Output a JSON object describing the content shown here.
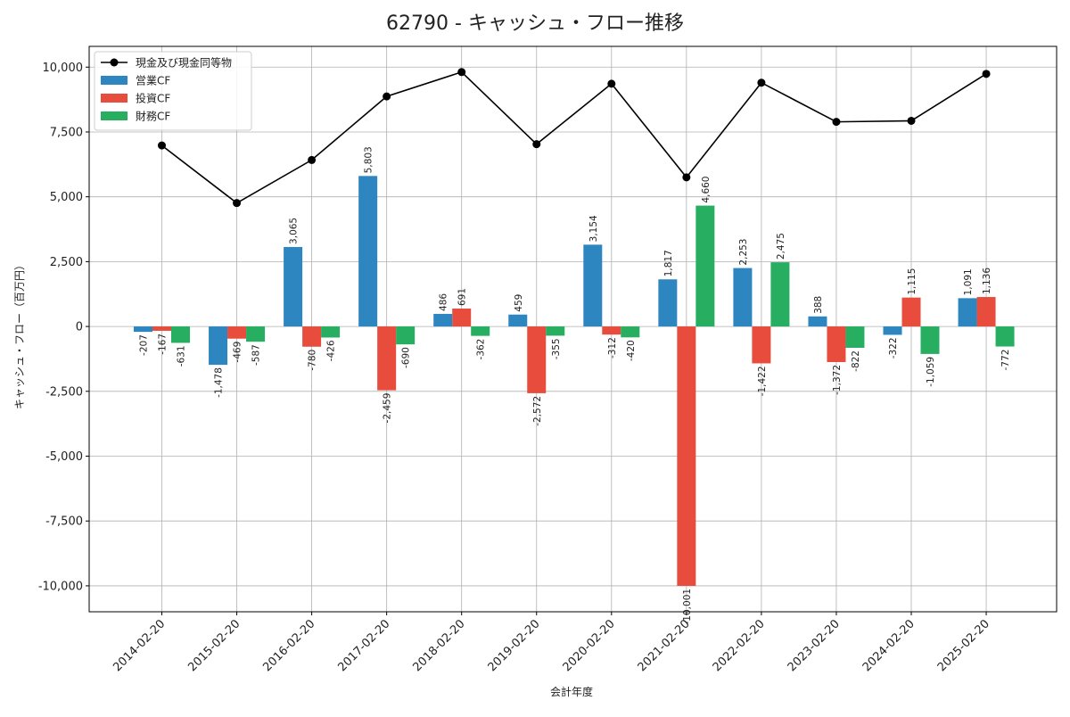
{
  "chart_data": {
    "type": "bar",
    "title": "62790 - キャッシュ・フロー推移",
    "xlabel": "会計年度",
    "ylabel": "キャッシュ・フロー（百万円）",
    "categories": [
      "2014-02-20",
      "2015-02-20",
      "2016-02-20",
      "2017-02-20",
      "2018-02-20",
      "2019-02-20",
      "2020-02-20",
      "2021-02-20",
      "2022-02-20",
      "2023-02-20",
      "2024-02-20",
      "2025-02-20"
    ],
    "ylim": [
      -11000,
      10800
    ],
    "yticks": [
      -10000,
      -7500,
      -5000,
      -2500,
      0,
      2500,
      5000,
      7500,
      10000
    ],
    "ytick_labels": [
      "-10,000",
      "-7,500",
      "-5,000",
      "-2,500",
      "0",
      "2,500",
      "5,000",
      "7,500",
      "10,000"
    ],
    "grid": true,
    "legend_position": "top-left",
    "series": [
      {
        "name": "営業CF",
        "kind": "bar",
        "color": "#2e86c1",
        "values": [
          -207,
          -1478,
          3065,
          5803,
          486,
          459,
          3154,
          1817,
          2253,
          388,
          -322,
          1091
        ],
        "labels": [
          "-207",
          "-1,478",
          "3,065",
          "5,803",
          "486",
          "459",
          "3,154",
          "1,817",
          "2,253",
          "388",
          "-322",
          "1,091"
        ]
      },
      {
        "name": "投資CF",
        "kind": "bar",
        "color": "#e74c3c",
        "values": [
          -167,
          -469,
          -780,
          -2459,
          691,
          -2572,
          -312,
          -10001,
          -1422,
          -1372,
          1115,
          1136
        ],
        "labels": [
          "-167",
          "-469",
          "-780",
          "-2,459",
          "691",
          "-2,572",
          "-312",
          "-10,001",
          "-1,422",
          "-1,372",
          "1,115",
          "1,136"
        ]
      },
      {
        "name": "財務CF",
        "kind": "bar",
        "color": "#27ae60",
        "values": [
          -631,
          -587,
          -426,
          -690,
          -362,
          -355,
          -420,
          4660,
          2475,
          -822,
          -1059,
          -772
        ],
        "labels": [
          "-631",
          "-587",
          "-426",
          "-690",
          "-362",
          "-355",
          "-420",
          "4,660",
          "2,475",
          "-822",
          "-1,059",
          "-772"
        ]
      },
      {
        "name": "現金及び現金同等物",
        "kind": "line",
        "color": "#000000",
        "values": [
          6980,
          4760,
          6420,
          8870,
          9810,
          7030,
          9360,
          5750,
          9400,
          7890,
          7930,
          9740
        ]
      }
    ]
  }
}
